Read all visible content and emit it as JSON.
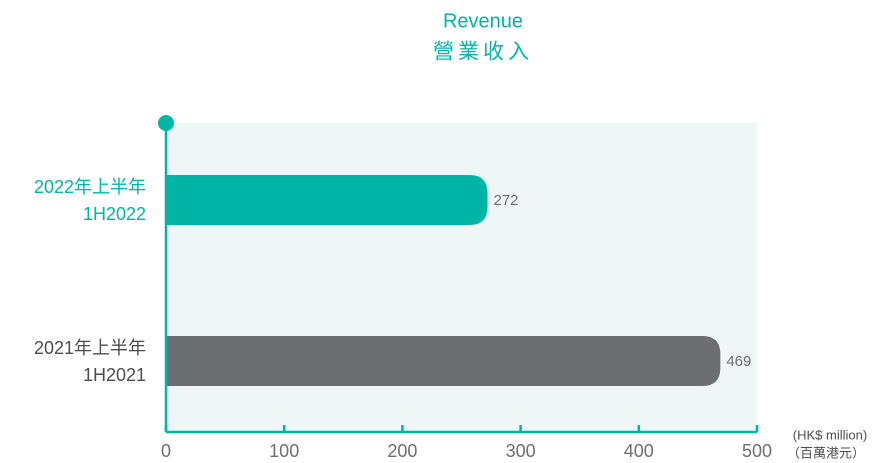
{
  "chart_data": {
    "type": "hbar",
    "title": [
      "Revenue",
      "營業收入"
    ],
    "categories": [
      [
        "2022年上半年",
        "1H2022"
      ],
      [
        "2021年上半年",
        "1H2021"
      ]
    ],
    "values": [
      272,
      469
    ],
    "colors": [
      "#00b5a5",
      "#6d6e71"
    ],
    "label_colors": [
      "#00b5a5",
      "#4d4d4f"
    ],
    "xlim": [
      0,
      500
    ],
    "xticks": [
      0,
      100,
      200,
      300,
      400,
      500
    ],
    "xlabel": [
      "(HK$ million)",
      "（百萬港元）"
    ]
  }
}
